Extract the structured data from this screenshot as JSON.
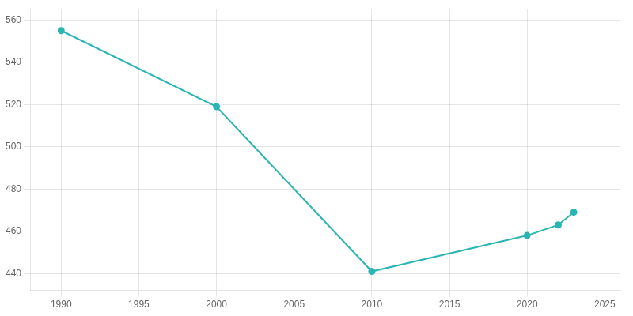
{
  "chart_data": {
    "type": "line",
    "x": [
      1990,
      2000,
      2010,
      2020,
      2022,
      2023
    ],
    "values": [
      555,
      519,
      441,
      458,
      463,
      469
    ],
    "color": "#2ab5b5",
    "marker": "circle",
    "xlim": [
      1988,
      2026
    ],
    "ylim": [
      432,
      565
    ],
    "xticks": [
      1990,
      1995,
      2000,
      2005,
      2010,
      2015,
      2020,
      2025
    ],
    "yticks": [
      440,
      460,
      480,
      500,
      520,
      540,
      560
    ],
    "grid": true
  }
}
